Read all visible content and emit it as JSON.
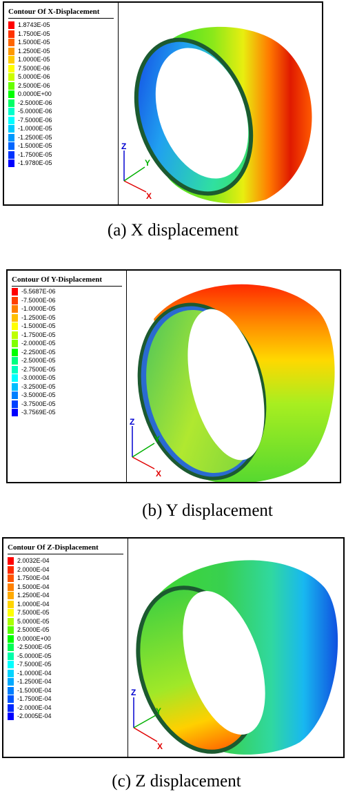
{
  "panels": [
    {
      "id": "x",
      "title": "Contour Of X-Displacement",
      "caption": "(a) X displacement",
      "legend": {
        "labels": [
          "1.8743E-05",
          "1.7500E-05",
          "1.5000E-05",
          "1.2500E-05",
          "1.0000E-05",
          "7.5000E-06",
          "5.0000E-06",
          "2.5000E-06",
          "0.0000E+00",
          "-2.5000E-06",
          "-5.0000E-06",
          "-7.5000E-06",
          "-1.0000E-05",
          "-1.2500E-05",
          "-1.5000E-05",
          "-1.7500E-05",
          "-1.9780E-05"
        ],
        "colors": [
          "#ff0000",
          "#ff3300",
          "#ff6600",
          "#ff9900",
          "#ffcc00",
          "#ffff00",
          "#ccff00",
          "#66ff00",
          "#00ff00",
          "#00ff66",
          "#00ffcc",
          "#00ffff",
          "#00ccff",
          "#0099ff",
          "#0066ff",
          "#0033ff",
          "#0000ff"
        ]
      },
      "axes": {
        "x": "X",
        "y": "Y",
        "z": "Z"
      }
    },
    {
      "id": "y",
      "title": "Contour Of Y-Displacement",
      "caption": "(b) Y displacement",
      "legend": {
        "labels": [
          "-5.5687E-06",
          "-7.5000E-06",
          "-1.0000E-05",
          "-1.2500E-05",
          "-1.5000E-05",
          "-1.7500E-05",
          "-2.0000E-05",
          "-2.2500E-05",
          "-2.5000E-05",
          "-2.7500E-05",
          "-3.0000E-05",
          "-3.2500E-05",
          "-3.5000E-05",
          "-3.7500E-05",
          "-3.7569E-05"
        ],
        "colors": [
          "#ff0000",
          "#ff4000",
          "#ff8000",
          "#ffbf00",
          "#ffff00",
          "#bfff00",
          "#80ff00",
          "#00ff00",
          "#00ff80",
          "#00ffbf",
          "#00ffff",
          "#00bfff",
          "#0080ff",
          "#0040ff",
          "#0000ff"
        ]
      },
      "axes": {
        "x": "X",
        "y": "Y",
        "z": "Z"
      }
    },
    {
      "id": "z",
      "title": "Contour Of Z-Displacement",
      "caption": "(c) Z displacement",
      "legend": {
        "labels": [
          "2.0032E-04",
          "2.0000E-04",
          "1.7500E-04",
          "1.5000E-04",
          "1.2500E-04",
          "1.0000E-04",
          "7.5000E-05",
          "5.0000E-05",
          "2.5000E-05",
          "0.0000E+00",
          "-2.5000E-05",
          "-5.0000E-05",
          "-7.5000E-05",
          "-1.0000E-04",
          "-1.2500E-04",
          "-1.5000E-04",
          "-1.7500E-04",
          "-2.0000E-04",
          "-2.0005E-04"
        ],
        "colors": [
          "#ff0000",
          "#ff2a00",
          "#ff5500",
          "#ff8000",
          "#ffaa00",
          "#ffd400",
          "#ffff00",
          "#aaff00",
          "#55ff00",
          "#00ff00",
          "#00ff55",
          "#00ffaa",
          "#00ffff",
          "#00d4ff",
          "#00aaff",
          "#0080ff",
          "#0055ff",
          "#002aff",
          "#0000ff"
        ]
      },
      "axes": {
        "x": "X",
        "y": "Y",
        "z": "Z"
      }
    }
  ],
  "colors": {
    "axis_x": "#e00000",
    "axis_y": "#00b000",
    "axis_z": "#0000d0",
    "rim": "#1c5a30"
  }
}
